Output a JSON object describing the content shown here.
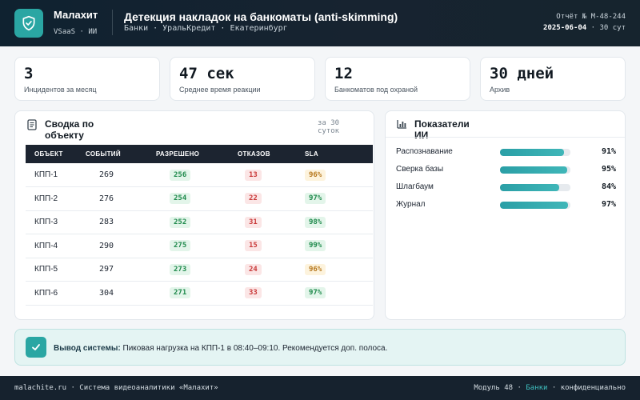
{
  "colors": {
    "accent": "#2aa6a3",
    "header_bg": "#16222e",
    "ok": "#1f8a4c",
    "bad": "#c93a3a",
    "warn": "#b7791f"
  },
  "header": {
    "logo_icon": "shield-check-icon",
    "brand": "Малахит",
    "brand_sub": "VSaaS · ИИ",
    "title": "Детекция накладок на банкоматы (anti-skimming)",
    "breadcrumb": "Банки · УральКредит · Екатеринбург",
    "report_no": "Отчёт № M-48-244",
    "report_date": "2025-06-04",
    "report_period": "· 30 сут"
  },
  "kpis": [
    {
      "value": "3",
      "label": "Инцидентов за месяц"
    },
    {
      "value": "47 сек",
      "label": "Среднее время реакции"
    },
    {
      "value": "12",
      "label": "Банкоматов под охраной"
    },
    {
      "value": "30 дней",
      "label": "Архив"
    }
  ],
  "summary": {
    "icon": "document-icon",
    "title": "Сводка по объекту",
    "note": "за 30 суток",
    "columns": [
      "ОБЪЕКТ",
      "СОБЫТИЙ",
      "РАЗРЕШЕНО",
      "ОТКАЗОВ",
      "SLA"
    ],
    "rows": [
      {
        "object": "КПП-1",
        "events": "269",
        "allowed": "256",
        "denied": "13",
        "sla": "96%",
        "sla_status": "amber"
      },
      {
        "object": "КПП-2",
        "events": "276",
        "allowed": "254",
        "denied": "22",
        "sla": "97%",
        "sla_status": "green"
      },
      {
        "object": "КПП-3",
        "events": "283",
        "allowed": "252",
        "denied": "31",
        "sla": "98%",
        "sla_status": "green"
      },
      {
        "object": "КПП-4",
        "events": "290",
        "allowed": "275",
        "denied": "15",
        "sla": "99%",
        "sla_status": "green"
      },
      {
        "object": "КПП-5",
        "events": "297",
        "allowed": "273",
        "denied": "24",
        "sla": "96%",
        "sla_status": "amber"
      },
      {
        "object": "КПП-6",
        "events": "304",
        "allowed": "271",
        "denied": "33",
        "sla": "97%",
        "sla_status": "green"
      }
    ]
  },
  "ai_metrics": {
    "icon": "bar-chart-icon",
    "title": "Показатели ИИ",
    "items": [
      {
        "label": "Распознавание",
        "pct": "91%",
        "value": 91
      },
      {
        "label": "Сверка базы",
        "pct": "95%",
        "value": 95
      },
      {
        "label": "Шлагбаум",
        "pct": "84%",
        "value": 84
      },
      {
        "label": "Журнал",
        "pct": "97%",
        "value": 97
      }
    ]
  },
  "conclusion": {
    "icon": "check-icon",
    "label": "Вывод системы:",
    "text": "Пиковая нагрузка на КПП-1 в 08:40–09:10. Рекомендуется доп. полоса."
  },
  "footer": {
    "left": "malachite.ru · Система видеоаналитики «Малахит»",
    "module": "Модуль 48 ·",
    "sector": "Банки",
    "confidential": "· конфиденциально"
  }
}
